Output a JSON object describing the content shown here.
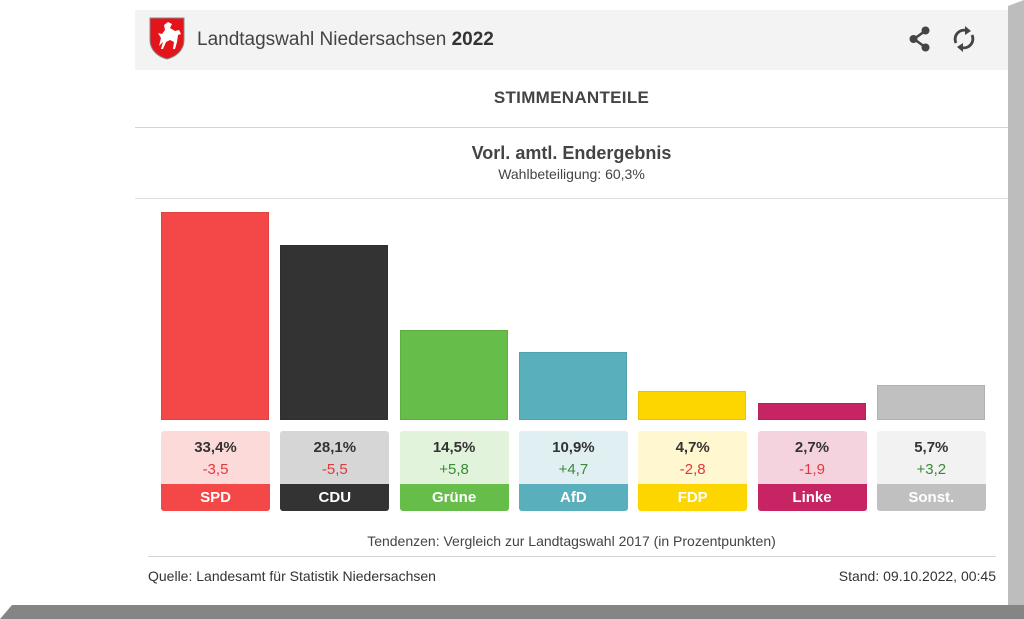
{
  "header": {
    "title_prefix": "Landtagswahl Niedersachsen",
    "title_year": "2022",
    "logo": "lower-saxony-crest-icon",
    "share_icon": "share-icon",
    "reload_icon": "reload-icon"
  },
  "section_title": "STIMMENANTEILE",
  "result_title": "Vorl. amtl. Endergebnis",
  "turnout": "Wahlbeteiligung: 60,3%",
  "colors": {
    "positive_diff": "#3a8a3a",
    "negative_diff": "#e0393e"
  },
  "chart_data": {
    "type": "bar",
    "title": "Stimmenanteile",
    "subtitle": "Vorl. amtl. Endergebnis",
    "categories": [
      "SPD",
      "CDU",
      "Grüne",
      "AfD",
      "FDP",
      "Linke",
      "Sonst."
    ],
    "values": [
      33.4,
      28.1,
      14.5,
      10.9,
      4.7,
      2.7,
      5.7
    ],
    "value_labels": [
      "33,4%",
      "28,1%",
      "14,5%",
      "10,9%",
      "4,7%",
      "2,7%",
      "5,7%"
    ],
    "changes": [
      -3.5,
      -5.5,
      5.8,
      4.7,
      -2.8,
      -1.9,
      3.2
    ],
    "change_labels": [
      "-3,5",
      "-5,5",
      "+5,8",
      "+4,7",
      "-2,8",
      "-1,9",
      "+3,2"
    ],
    "colors": [
      "#f44848",
      "#333333",
      "#66bd4a",
      "#5aafbd",
      "#fdd600",
      "#c72463",
      "#c0c0c0"
    ],
    "light_colors": [
      "#fddada",
      "#d6d6d6",
      "#e2f3dc",
      "#dfeff2",
      "#fff7cf",
      "#f4d3df",
      "#f2f2f2"
    ],
    "xlabel": "",
    "ylabel": "",
    "ylim": [
      0,
      33.4
    ],
    "grid": false,
    "legend": "none"
  },
  "note": "Tendenzen: Vergleich zur Landtagswahl 2017 (in Prozentpunkten)",
  "footer": {
    "source": "Quelle: Landesamt für Statistik Niedersachsen",
    "stand": "Stand: 09.10.2022, 00:45"
  }
}
